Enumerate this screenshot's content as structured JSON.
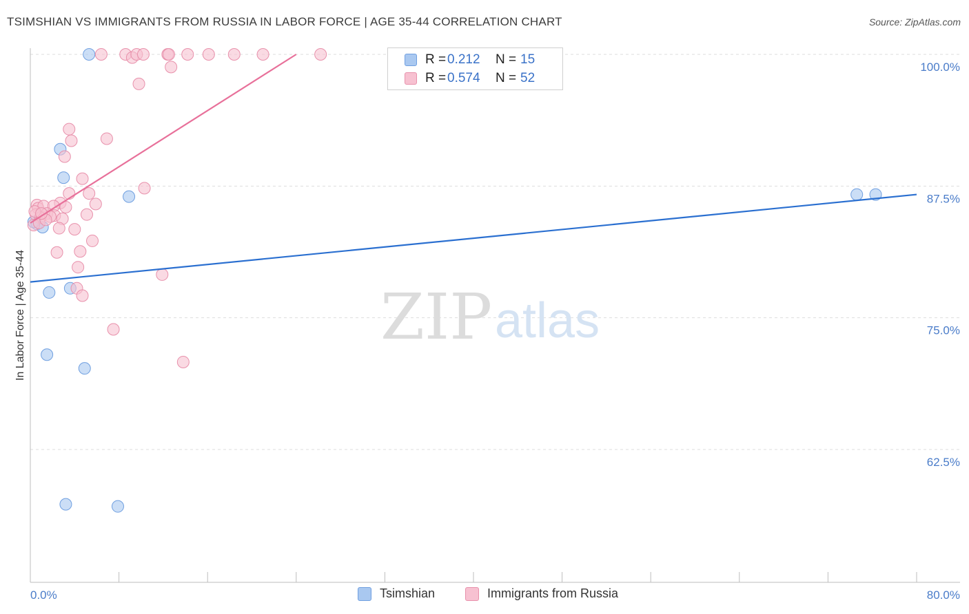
{
  "title": "TSIMSHIAN VS IMMIGRANTS FROM RUSSIA IN LABOR FORCE | AGE 35-44 CORRELATION CHART",
  "source": "Source: ZipAtlas.com",
  "watermark": {
    "zip": "ZIP",
    "atlas": "atlas"
  },
  "legend": {
    "rows": [
      {
        "r_label": "R =",
        "r_value": "0.212",
        "n_label": "N =",
        "n_value": "15",
        "color": "#a9c8f0",
        "border": "#6f9fe0"
      },
      {
        "r_label": "R =",
        "r_value": "0.574",
        "n_label": "N =",
        "n_value": "52",
        "color": "#f7c1d1",
        "border": "#e890ab"
      }
    ]
  },
  "bottom_legend": [
    "Tsimshian",
    "Immigrants from Russia"
  ],
  "chart_data": {
    "type": "scatter",
    "title": "TSIMSHIAN VS IMMIGRANTS FROM RUSSIA IN LABOR FORCE | AGE 35-44 CORRELATION CHART",
    "xlabel": "",
    "ylabel": "In Labor Force | Age 35-44",
    "xlim": [
      0,
      80
    ],
    "ylim": [
      50,
      102
    ],
    "x_tick_labels": {
      "min": "0.0%",
      "max": "80.0%"
    },
    "y_ticks": [
      {
        "value": 100,
        "label": "100.0%"
      },
      {
        "value": 87.5,
        "label": "87.5%"
      },
      {
        "value": 75,
        "label": "75.0%"
      },
      {
        "value": 62.5,
        "label": "62.5%"
      }
    ],
    "series": [
      {
        "name": "Tsimshian",
        "color": "#a9c8f0",
        "stroke": "#6f9fe0",
        "line_color": "#2a6fd0",
        "trend": {
          "x": [
            0,
            80
          ],
          "y": [
            78.4,
            86.7
          ]
        },
        "points": [
          {
            "x": 5.3,
            "y": 100.0
          },
          {
            "x": 2.7,
            "y": 91.0
          },
          {
            "x": 3.0,
            "y": 88.3
          },
          {
            "x": 8.9,
            "y": 86.5
          },
          {
            "x": 0.6,
            "y": 83.9
          },
          {
            "x": 1.1,
            "y": 83.6
          },
          {
            "x": 1.7,
            "y": 77.4
          },
          {
            "x": 3.6,
            "y": 77.8
          },
          {
            "x": 1.5,
            "y": 71.5
          },
          {
            "x": 4.9,
            "y": 70.2
          },
          {
            "x": 74.6,
            "y": 86.7
          },
          {
            "x": 76.3,
            "y": 86.7
          },
          {
            "x": 3.2,
            "y": 57.3
          },
          {
            "x": 7.9,
            "y": 57.1
          },
          {
            "x": 0.3,
            "y": 84.1
          }
        ]
      },
      {
        "name": "Immigrants from Russia",
        "color": "#f7c1d1",
        "stroke": "#e890ab",
        "line_color": "#e8709a",
        "trend": {
          "x": [
            0,
            24
          ],
          "y": [
            84.0,
            100.0
          ]
        },
        "points": [
          {
            "x": 6.4,
            "y": 100.0
          },
          {
            "x": 8.6,
            "y": 100.0
          },
          {
            "x": 9.2,
            "y": 99.7
          },
          {
            "x": 9.6,
            "y": 100.0
          },
          {
            "x": 10.2,
            "y": 100.0
          },
          {
            "x": 12.4,
            "y": 100.0
          },
          {
            "x": 12.5,
            "y": 100.0
          },
          {
            "x": 14.2,
            "y": 100.0
          },
          {
            "x": 16.1,
            "y": 100.0
          },
          {
            "x": 18.4,
            "y": 100.0
          },
          {
            "x": 21.0,
            "y": 100.0
          },
          {
            "x": 26.2,
            "y": 100.0
          },
          {
            "x": 12.7,
            "y": 98.8
          },
          {
            "x": 9.8,
            "y": 97.2
          },
          {
            "x": 3.5,
            "y": 92.9
          },
          {
            "x": 3.7,
            "y": 91.8
          },
          {
            "x": 6.9,
            "y": 92.0
          },
          {
            "x": 3.1,
            "y": 90.3
          },
          {
            "x": 4.7,
            "y": 88.2
          },
          {
            "x": 10.3,
            "y": 87.3
          },
          {
            "x": 3.5,
            "y": 86.8
          },
          {
            "x": 5.3,
            "y": 86.8
          },
          {
            "x": 2.7,
            "y": 85.9
          },
          {
            "x": 5.9,
            "y": 85.8
          },
          {
            "x": 0.6,
            "y": 85.7
          },
          {
            "x": 0.7,
            "y": 85.4
          },
          {
            "x": 1.2,
            "y": 85.6
          },
          {
            "x": 2.1,
            "y": 85.6
          },
          {
            "x": 3.2,
            "y": 85.5
          },
          {
            "x": 1.5,
            "y": 84.9
          },
          {
            "x": 2.2,
            "y": 84.7
          },
          {
            "x": 0.5,
            "y": 84.8
          },
          {
            "x": 0.9,
            "y": 84.5
          },
          {
            "x": 1.8,
            "y": 84.6
          },
          {
            "x": 2.9,
            "y": 84.4
          },
          {
            "x": 5.1,
            "y": 84.8
          },
          {
            "x": 0.3,
            "y": 83.8
          },
          {
            "x": 0.8,
            "y": 84.0
          },
          {
            "x": 1.4,
            "y": 84.3
          },
          {
            "x": 2.6,
            "y": 83.5
          },
          {
            "x": 4.0,
            "y": 83.4
          },
          {
            "x": 5.6,
            "y": 82.3
          },
          {
            "x": 2.4,
            "y": 81.2
          },
          {
            "x": 4.5,
            "y": 81.3
          },
          {
            "x": 4.3,
            "y": 79.8
          },
          {
            "x": 11.9,
            "y": 79.1
          },
          {
            "x": 4.2,
            "y": 77.8
          },
          {
            "x": 4.7,
            "y": 77.1
          },
          {
            "x": 7.5,
            "y": 73.9
          },
          {
            "x": 13.8,
            "y": 70.8
          },
          {
            "x": 0.4,
            "y": 85.1
          },
          {
            "x": 1.0,
            "y": 84.9
          }
        ]
      }
    ]
  }
}
